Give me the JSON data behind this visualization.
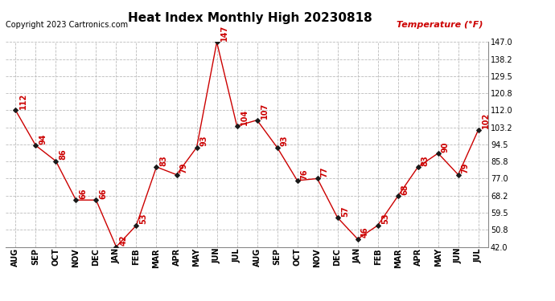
{
  "title": "Heat Index Monthly High 20230818",
  "copyright_text": "Copyright 2023 Cartronics.com",
  "ylabel": "Temperature (°F)",
  "months": [
    "AUG",
    "SEP",
    "OCT",
    "NOV",
    "DEC",
    "JAN",
    "FEB",
    "MAR",
    "APR",
    "MAY",
    "JUN",
    "JUL",
    "AUG",
    "SEP",
    "OCT",
    "NOV",
    "DEC",
    "JAN",
    "FEB",
    "MAR",
    "APR",
    "MAY",
    "JUN",
    "JUL"
  ],
  "values": [
    112,
    94,
    86,
    66,
    66,
    42,
    53,
    83,
    79,
    93,
    147,
    104,
    107,
    93,
    76,
    77,
    57,
    46,
    53,
    68,
    83,
    90,
    79,
    102
  ],
  "ylim": [
    42.0,
    147.0
  ],
  "yticks": [
    42.0,
    50.8,
    59.5,
    68.2,
    77.0,
    85.8,
    94.5,
    103.2,
    112.0,
    120.8,
    129.5,
    138.2,
    147.0
  ],
  "line_color": "#cc0000",
  "marker_color": "#1a1a1a",
  "label_color": "#cc0000",
  "title_fontsize": 11,
  "copyright_fontsize": 7,
  "label_fontsize": 7,
  "tick_fontsize": 7,
  "background_color": "#ffffff",
  "grid_color": "#bbbbbb"
}
